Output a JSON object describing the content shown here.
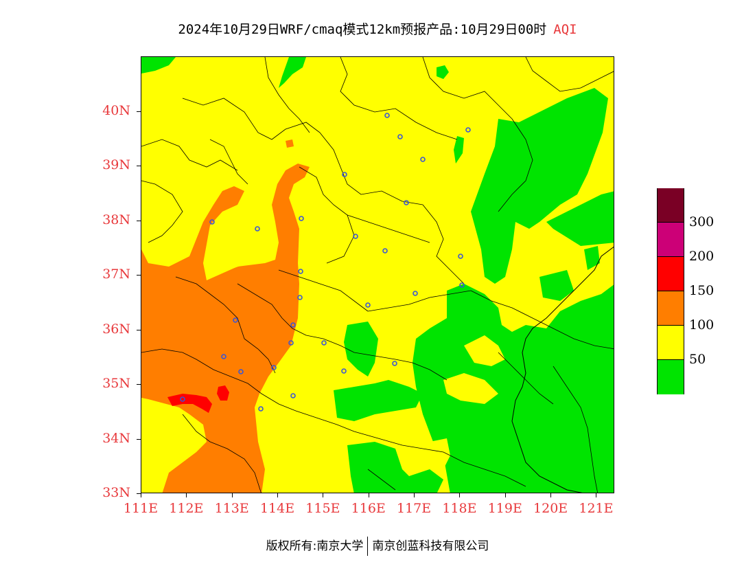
{
  "title": {
    "main": "2024年10月29日WRF/cmaq模式12km预报产品:10月29日00时",
    "variable": "AQI"
  },
  "axes": {
    "latitude_labels": [
      "40N",
      "39N",
      "38N",
      "37N",
      "36N",
      "35N",
      "34N",
      "33N"
    ],
    "latitude_values": [
      40,
      39,
      38,
      37,
      36,
      35,
      34,
      33
    ],
    "longitude_labels": [
      "111E",
      "112E",
      "113E",
      "114E",
      "115E",
      "116E",
      "117E",
      "118E",
      "119E",
      "120E",
      "121E"
    ],
    "longitude_values": [
      111,
      112,
      113,
      114,
      115,
      116,
      117,
      118,
      119,
      120,
      121
    ],
    "label_color": "#e8393c"
  },
  "map": {
    "lon_range": [
      111,
      121.4
    ],
    "lat_range": [
      33,
      41
    ]
  },
  "legend": {
    "labels": [
      "300",
      "200",
      "150",
      "100",
      "50"
    ],
    "levels": [
      {
        "range": "300+",
        "color": "#7a0025"
      },
      {
        "range": "200-300",
        "color": "#cc0077"
      },
      {
        "range": "150-200",
        "color": "#ff0000"
      },
      {
        "range": "100-150",
        "color": "#ff7e00"
      },
      {
        "range": "50-100",
        "color": "#ffff00"
      },
      {
        "range": "0-50",
        "color": "#00e400"
      }
    ]
  },
  "copyright": {
    "prefix": "版权所有:南京大学",
    "company": "南京创蓝科技有限公司"
  },
  "city_markers_icon": "city-marker-icon"
}
